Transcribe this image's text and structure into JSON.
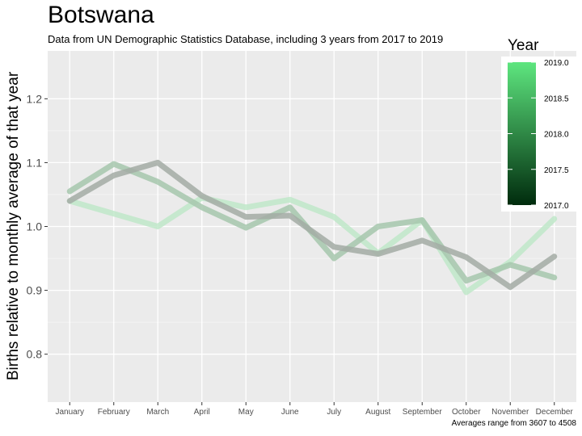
{
  "header": {
    "title": "Botswana",
    "subtitle": "Data from UN Demographic Statistics Database, including 3 years from 2017 to 2019"
  },
  "caption": "Averages range from 3607 to 4508",
  "legend": {
    "title": "Year",
    "labels": [
      "2019.0",
      "2018.5",
      "2018.0",
      "2017.5",
      "2017.0"
    ],
    "low_color": "#002b0d",
    "high_color": "#5ee67f"
  },
  "chart_data": {
    "type": "line",
    "title": "Botswana",
    "subtitle": "Data from UN Demographic Statistics Database, including 3 years from 2017 to 2019",
    "xlabel": "",
    "ylabel": "Births relative to monthly average of that year",
    "categories": [
      "January",
      "February",
      "March",
      "April",
      "May",
      "June",
      "July",
      "August",
      "September",
      "October",
      "November",
      "December"
    ],
    "ylim": [
      0.725,
      1.275
    ],
    "yticks": [
      0.8,
      0.9,
      1.0,
      1.1,
      1.2
    ],
    "ytick_labels": [
      "0.8",
      "0.9",
      "1.0",
      "1.1",
      "1.2"
    ],
    "grid": true,
    "legend_position": "top-right",
    "series": [
      {
        "year": 2019,
        "color": "#bfe8c9",
        "values": [
          1.04,
          1.02,
          1.0,
          1.045,
          1.03,
          1.042,
          1.015,
          0.958,
          1.01,
          0.897,
          0.945,
          1.012
        ]
      },
      {
        "year": 2018,
        "color": "#a6c7ad",
        "values": [
          1.055,
          1.098,
          1.07,
          1.03,
          0.998,
          1.03,
          0.95,
          1.0,
          1.01,
          0.915,
          0.94,
          0.92
        ]
      },
      {
        "year": 2017,
        "color": "#a3aba4",
        "values": [
          1.04,
          1.08,
          1.1,
          1.048,
          1.015,
          1.017,
          0.968,
          0.957,
          0.978,
          0.952,
          0.905,
          0.953
        ]
      }
    ]
  }
}
